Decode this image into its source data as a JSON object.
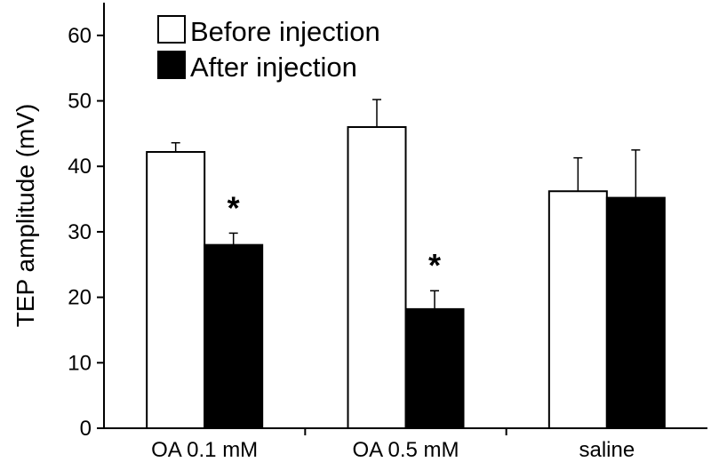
{
  "chart_data": {
    "type": "bar",
    "ylabel": "TEP amplitude (mV)",
    "xlabel": "",
    "ylim": [
      0,
      65
    ],
    "yticks": [
      0,
      10,
      20,
      30,
      40,
      50,
      60
    ],
    "categories": [
      "OA 0.1 mM",
      "OA 0.5 mM",
      "saline"
    ],
    "series": [
      {
        "name": "Before injection",
        "values": [
          42.2,
          46.0,
          36.2
        ],
        "errors": [
          1.4,
          4.2,
          5.1
        ],
        "color": "#ffffff"
      },
      {
        "name": "After injection",
        "values": [
          28.0,
          18.2,
          35.2
        ],
        "errors": [
          1.8,
          2.8,
          7.3
        ],
        "color": "#000000"
      }
    ],
    "annotations": [
      {
        "category": 0,
        "series": 1,
        "text": "*"
      },
      {
        "category": 1,
        "series": 1,
        "text": "*"
      }
    ],
    "legend": {
      "placement": "top-left"
    },
    "grid": false
  }
}
